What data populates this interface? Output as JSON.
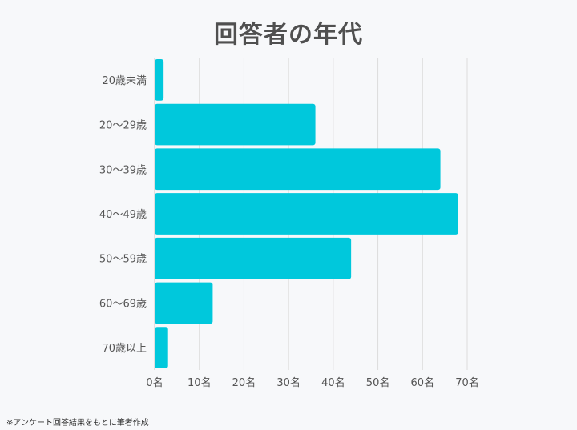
{
  "footnote": "※アンケート回答結果をもとに筆者作成",
  "chart_data": {
    "type": "bar",
    "orientation": "horizontal",
    "title": "回答者の年代",
    "categories": [
      "20歳未満",
      "20〜29歳",
      "30〜39歳",
      "40〜49歳",
      "50〜59歳",
      "60〜69歳",
      "70歳以上"
    ],
    "values": [
      2,
      36,
      64,
      68,
      44,
      13,
      3
    ],
    "xlim": [
      0,
      70
    ],
    "xticks": [
      "0名",
      "10名",
      "20名",
      "30名",
      "40名",
      "50名",
      "60名",
      "70名"
    ],
    "grid": true,
    "color": "#00c8dc"
  }
}
